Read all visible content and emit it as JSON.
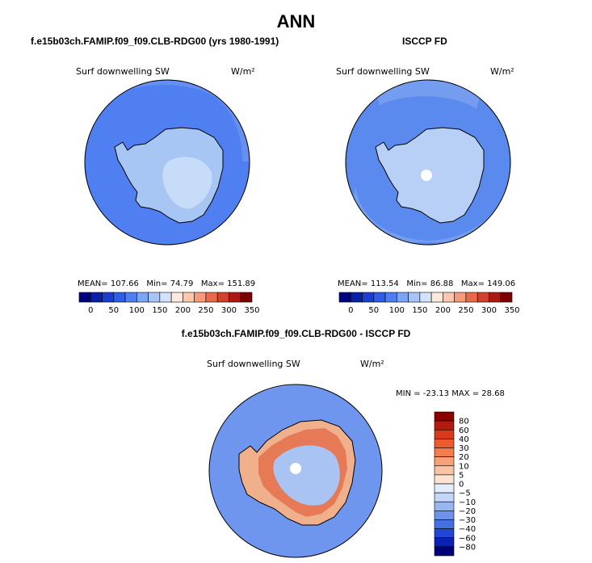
{
  "main_title": "ANN",
  "panels": {
    "left_title": "f.e15b03ch.FAMIP.f09_f09.CLB-RDG00 (yrs 1980-1991)",
    "right_title": "ISCCP FD",
    "bottom_title": "f.e15b03ch.FAMIP.f09_f09.CLB-RDG00 - ISCCP FD"
  },
  "colors": {
    "ocean_model": "#5b8aee",
    "ocean_obs": "#5b8aee",
    "land_outer": "#a8c6f4",
    "land_inner": "#c6dcf8",
    "coast": "#000000",
    "diff_ocean": "#6f96ef",
    "diff_warm": "#f0b08c",
    "diff_hot": "#e4714e",
    "diff_cool": "#a9c4f2"
  },
  "chart_data": [
    {
      "type": "heatmap",
      "panel": "model",
      "variable_label": "Surf downwelling SW",
      "units_label": "W/m²",
      "stats": {
        "mean_label": "MEAN=",
        "mean": "107.66",
        "min_label": "Min=",
        "min": "74.79",
        "max_label": "Max=",
        "max": "151.89"
      },
      "colorbar": {
        "ticks": [
          "0",
          "50",
          "100",
          "150",
          "200",
          "250",
          "300",
          "350"
        ],
        "colors": [
          "#00007f",
          "#0a1fa8",
          "#1a3fd0",
          "#2e5de8",
          "#4d7ff0",
          "#7ea4f4",
          "#a9c4f7",
          "#d2e2fb",
          "#ffe9dc",
          "#fcc7ad",
          "#f79b7a",
          "#e96a4a",
          "#d1402a",
          "#ab1a12",
          "#7d0000"
        ]
      }
    },
    {
      "type": "heatmap",
      "panel": "observations",
      "variable_label": "Surf downwelling SW",
      "units_label": "W/m²",
      "stats": {
        "mean_label": "MEAN=",
        "mean": "113.54",
        "min_label": "Min=",
        "min": "86.88",
        "max_label": "Max=",
        "max": "149.06"
      },
      "colorbar": {
        "ticks": [
          "0",
          "50",
          "100",
          "150",
          "200",
          "250",
          "300",
          "350"
        ],
        "colors": [
          "#00007f",
          "#0a1fa8",
          "#1a3fd0",
          "#2e5de8",
          "#4d7ff0",
          "#7ea4f4",
          "#a9c4f7",
          "#d2e2fb",
          "#ffe9dc",
          "#fcc7ad",
          "#f79b7a",
          "#e96a4a",
          "#d1402a",
          "#ab1a12",
          "#7d0000"
        ]
      }
    },
    {
      "type": "heatmap",
      "panel": "difference",
      "variable_label": "Surf downwelling SW",
      "units_label": "W/m²",
      "stats_text": "MIN = -23.13  MAX =  28.68",
      "colorbar": {
        "ticks": [
          "80",
          "60",
          "40",
          "30",
          "20",
          "10",
          "5",
          "0",
          "−5",
          "−10",
          "−20",
          "−30",
          "−40",
          "−60",
          "−80"
        ],
        "colors": [
          "#8a0000",
          "#b31b0f",
          "#d83a1c",
          "#ec5a2e",
          "#f47d4d",
          "#f7a27b",
          "#f9c4a6",
          "#fde3d3",
          "#e3edfb",
          "#c4d7f6",
          "#98b6f0",
          "#6d93ea",
          "#4470e2",
          "#2146d6",
          "#0a20b8",
          "#00007a"
        ]
      }
    }
  ]
}
